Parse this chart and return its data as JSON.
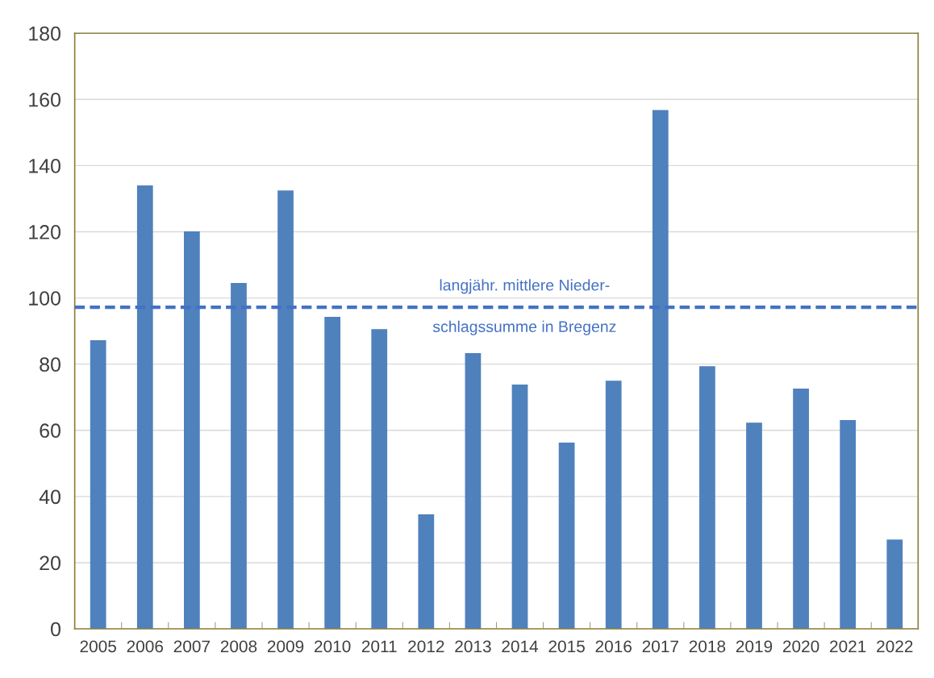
{
  "chart_data": {
    "type": "bar",
    "categories": [
      "2005",
      "2006",
      "2007",
      "2008",
      "2009",
      "2010",
      "2011",
      "2012",
      "2013",
      "2014",
      "2015",
      "2016",
      "2017",
      "2018",
      "2019",
      "2020",
      "2021",
      "2022"
    ],
    "values": [
      87.2,
      134.0,
      120.1,
      104.5,
      132.5,
      94.3,
      90.6,
      34.6,
      83.3,
      73.8,
      56.3,
      75.0,
      156.8,
      79.4,
      62.3,
      72.6,
      63.1,
      27.0
    ],
    "color": "#4f81bd",
    "ylim": [
      0,
      180
    ],
    "yticks": [
      0,
      20,
      40,
      60,
      80,
      100,
      120,
      140,
      160,
      180
    ],
    "grid": "y",
    "ref_lines": [
      {
        "axis": "y",
        "value": 97.2,
        "label": "langjähr. mittlere Nieder-\nschlagssumme in Bregenz",
        "color": "#4472c4",
        "line_style": "dashed"
      }
    ]
  }
}
